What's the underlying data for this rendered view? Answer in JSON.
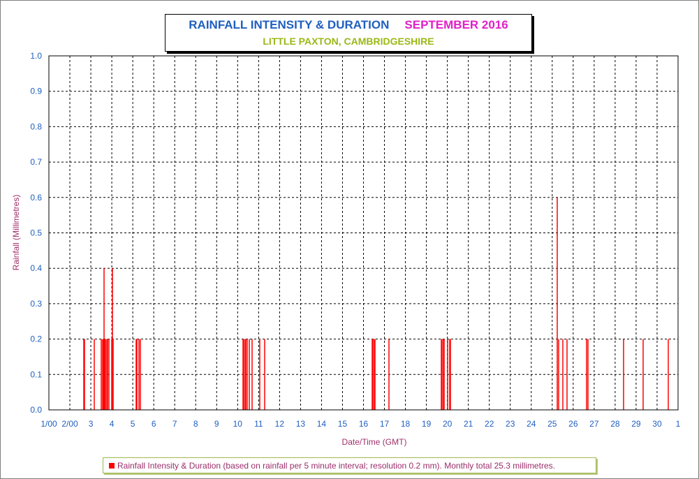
{
  "title": {
    "left": "RAINFALL INTENSITY & DURATION",
    "right": "SEPTEMBER 2016",
    "subtitle": "LITTLE PAXTON, CAMBRIDGESHIRE"
  },
  "legend": {
    "label": "Rainfall Intensity & Duration (based on rainfall per 5 minute interval; resolution 0.2 mm). Monthly total 25.3 millimetres."
  },
  "colors": {
    "bar": "#ff0000",
    "tick_label": "#1f5fbf",
    "axis_title": "#a0306a",
    "title_left": "#1f5fbf",
    "title_right": "#e020c8",
    "subtitle": "#9ab817"
  },
  "chart_data": {
    "type": "bar",
    "xlabel": "Date/Time (GMT)",
    "ylabel": "Rainfall (Millimetres)",
    "ylim": [
      0,
      1.0
    ],
    "xlim": [
      1,
      31
    ],
    "grid": true,
    "legend_position": "bottom",
    "y_ticks": [
      "0.0",
      "0.1",
      "0.2",
      "0.3",
      "0.4",
      "0.5",
      "0.6",
      "0.7",
      "0.8",
      "0.9",
      "1.0"
    ],
    "x_ticks": [
      {
        "pos": 1,
        "label": "1/00"
      },
      {
        "pos": 2,
        "label": "2/00"
      },
      {
        "pos": 3,
        "label": "3"
      },
      {
        "pos": 4,
        "label": "4"
      },
      {
        "pos": 5,
        "label": "5"
      },
      {
        "pos": 6,
        "label": "6"
      },
      {
        "pos": 7,
        "label": "7"
      },
      {
        "pos": 8,
        "label": "8"
      },
      {
        "pos": 9,
        "label": "9"
      },
      {
        "pos": 10,
        "label": "10"
      },
      {
        "pos": 11,
        "label": "11"
      },
      {
        "pos": 12,
        "label": "12"
      },
      {
        "pos": 13,
        "label": "13"
      },
      {
        "pos": 14,
        "label": "14"
      },
      {
        "pos": 15,
        "label": "15"
      },
      {
        "pos": 16,
        "label": "16"
      },
      {
        "pos": 17,
        "label": "17"
      },
      {
        "pos": 18,
        "label": "18"
      },
      {
        "pos": 19,
        "label": "19"
      },
      {
        "pos": 20,
        "label": "20"
      },
      {
        "pos": 21,
        "label": "21"
      },
      {
        "pos": 22,
        "label": "22"
      },
      {
        "pos": 23,
        "label": "23"
      },
      {
        "pos": 24,
        "label": "24"
      },
      {
        "pos": 25,
        "label": "25"
      },
      {
        "pos": 26,
        "label": "26"
      },
      {
        "pos": 27,
        "label": "27"
      },
      {
        "pos": 28,
        "label": "28"
      },
      {
        "pos": 29,
        "label": "29"
      },
      {
        "pos": 30,
        "label": "30"
      },
      {
        "pos": 31,
        "label": "1"
      }
    ],
    "series": [
      {
        "name": "Rainfall Intensity & Duration",
        "points": [
          {
            "x": 2.65,
            "y": 0.2
          },
          {
            "x": 2.7,
            "y": 0.2
          },
          {
            "x": 3.15,
            "y": 0.2
          },
          {
            "x": 3.5,
            "y": 0.2
          },
          {
            "x": 3.55,
            "y": 0.2
          },
          {
            "x": 3.6,
            "y": 0.2
          },
          {
            "x": 3.63,
            "y": 0.4
          },
          {
            "x": 3.66,
            "y": 0.2
          },
          {
            "x": 3.7,
            "y": 0.2
          },
          {
            "x": 3.75,
            "y": 0.2
          },
          {
            "x": 3.8,
            "y": 0.2
          },
          {
            "x": 3.85,
            "y": 0.2
          },
          {
            "x": 4.0,
            "y": 0.2
          },
          {
            "x": 4.03,
            "y": 0.4
          },
          {
            "x": 4.06,
            "y": 0.2
          },
          {
            "x": 5.15,
            "y": 0.2
          },
          {
            "x": 5.2,
            "y": 0.2
          },
          {
            "x": 5.3,
            "y": 0.2
          },
          {
            "x": 5.35,
            "y": 0.2
          },
          {
            "x": 10.25,
            "y": 0.2
          },
          {
            "x": 10.3,
            "y": 0.2
          },
          {
            "x": 10.35,
            "y": 0.2
          },
          {
            "x": 10.4,
            "y": 0.2
          },
          {
            "x": 10.45,
            "y": 0.2
          },
          {
            "x": 10.55,
            "y": 0.2
          },
          {
            "x": 10.7,
            "y": 0.2
          },
          {
            "x": 11.05,
            "y": 0.2
          },
          {
            "x": 11.3,
            "y": 0.2
          },
          {
            "x": 16.4,
            "y": 0.2
          },
          {
            "x": 16.45,
            "y": 0.2
          },
          {
            "x": 16.5,
            "y": 0.2
          },
          {
            "x": 16.55,
            "y": 0.2
          },
          {
            "x": 17.2,
            "y": 0.2
          },
          {
            "x": 19.7,
            "y": 0.2
          },
          {
            "x": 19.75,
            "y": 0.2
          },
          {
            "x": 19.8,
            "y": 0.2
          },
          {
            "x": 19.85,
            "y": 0.2
          },
          {
            "x": 20.0,
            "y": 0.2
          },
          {
            "x": 20.1,
            "y": 0.2
          },
          {
            "x": 20.15,
            "y": 0.2
          },
          {
            "x": 25.25,
            "y": 0.6
          },
          {
            "x": 25.3,
            "y": 0.2
          },
          {
            "x": 25.5,
            "y": 0.2
          },
          {
            "x": 25.7,
            "y": 0.2
          },
          {
            "x": 26.65,
            "y": 0.2
          },
          {
            "x": 26.7,
            "y": 0.2
          },
          {
            "x": 28.4,
            "y": 0.2
          },
          {
            "x": 29.35,
            "y": 0.2
          },
          {
            "x": 30.55,
            "y": 0.2
          }
        ]
      }
    ]
  }
}
